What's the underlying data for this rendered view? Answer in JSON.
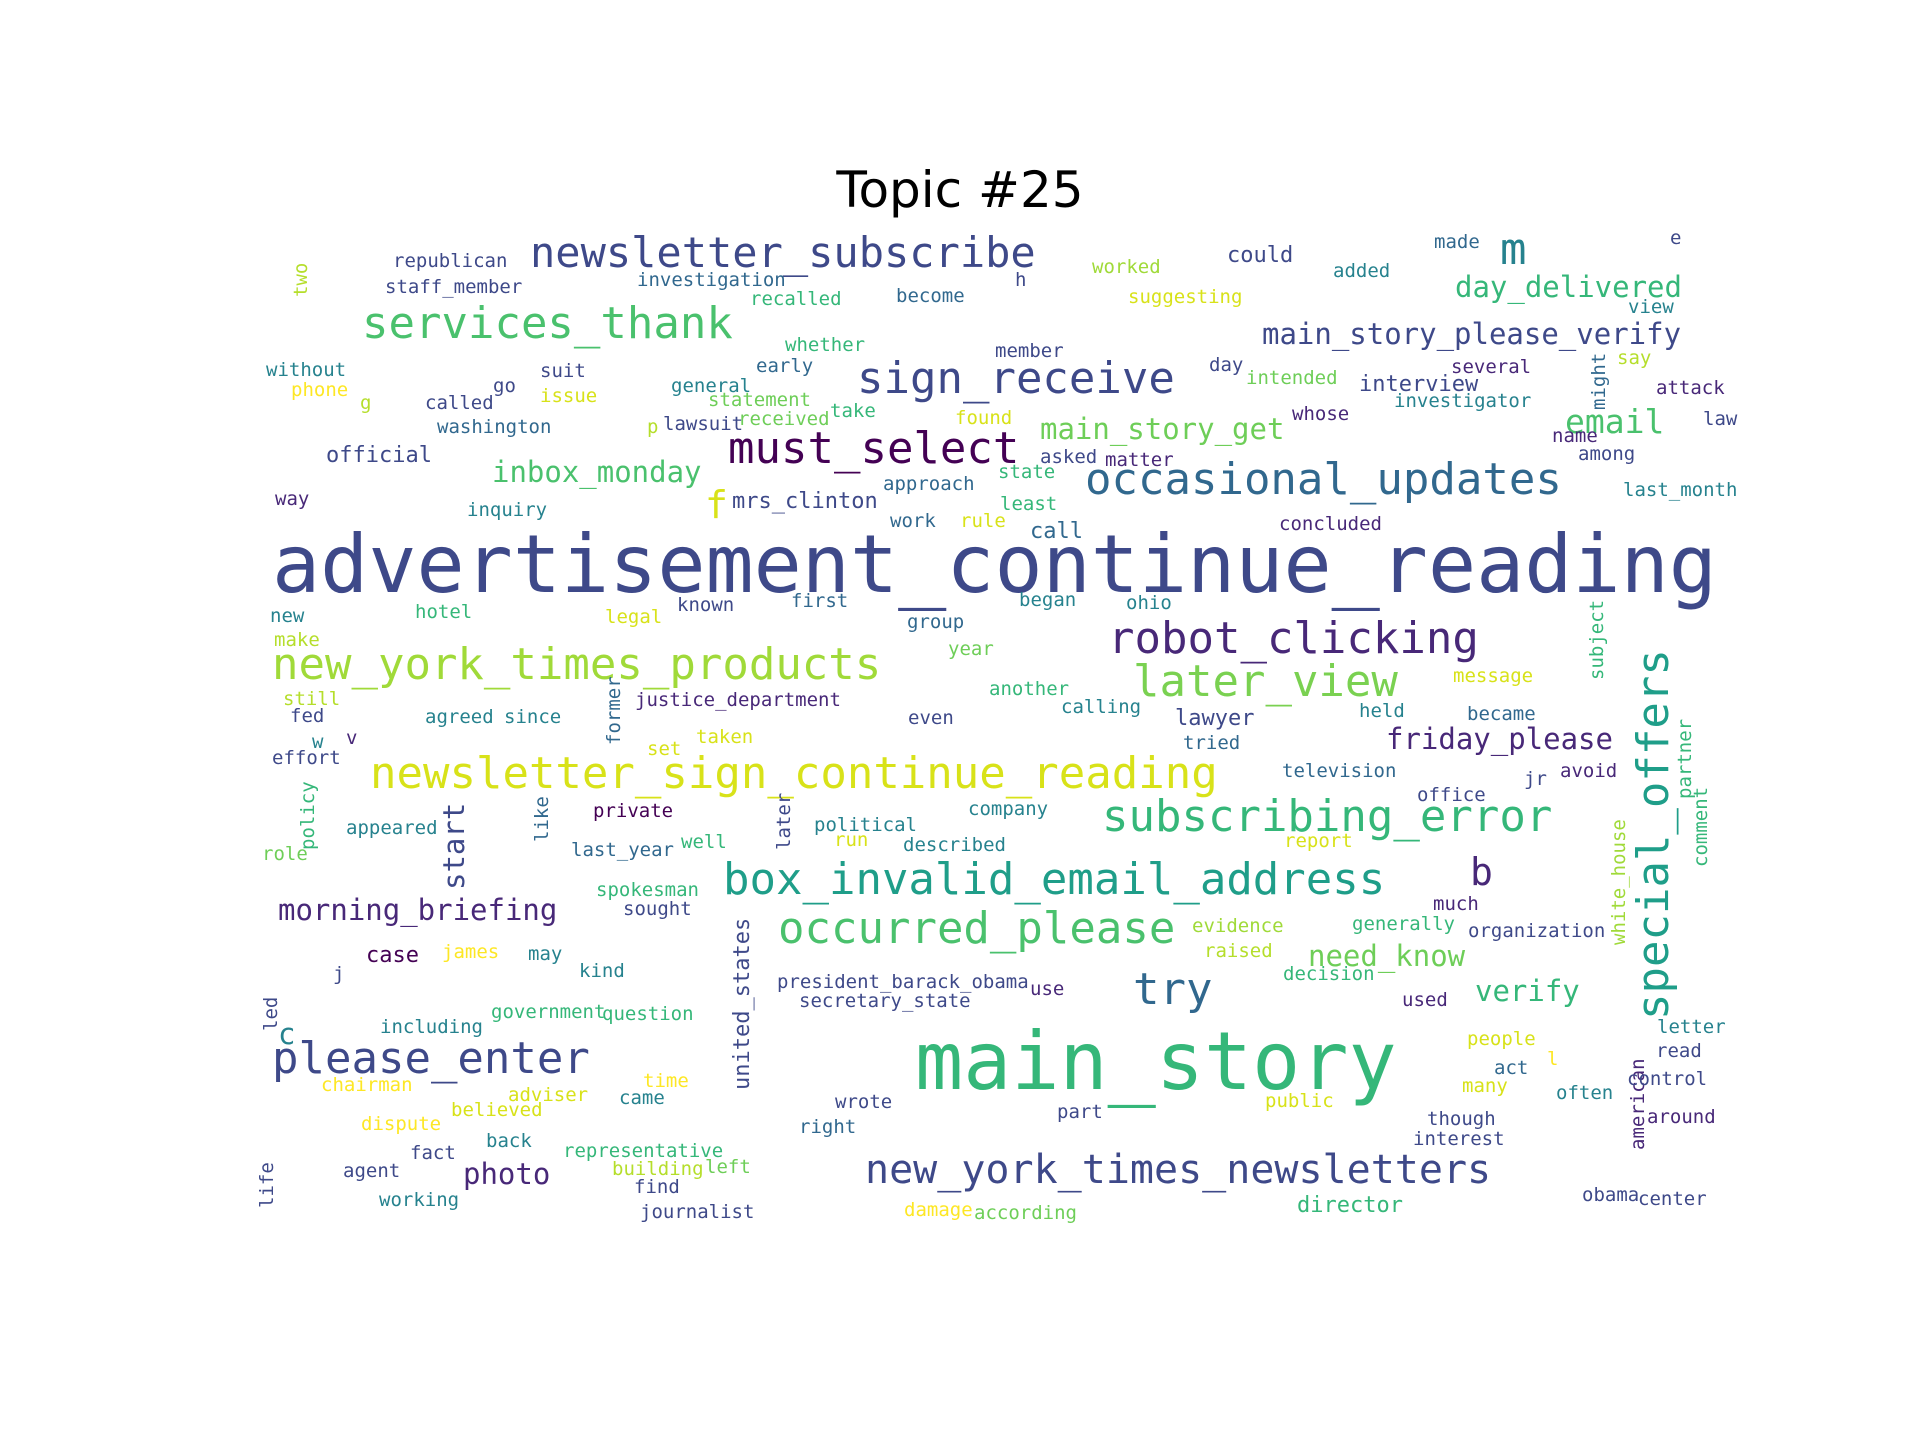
{
  "title": "Topic #25",
  "palette": [
    "#440154",
    "#482878",
    "#3e4989",
    "#31688e",
    "#26828e",
    "#1f9e89",
    "#35b779",
    "#6ece58",
    "#b5de2b",
    "#fde725"
  ],
  "words": [
    {
      "text": "advertisement_continue_reading",
      "color": "#3e4989"
    },
    {
      "text": "main_story",
      "color": "#35b779"
    },
    {
      "text": "newsletter_sign_continue_reading",
      "color": "#d8e219"
    },
    {
      "text": "new_york_times_products",
      "color": "#a0da39"
    },
    {
      "text": "box_invalid_email_address",
      "color": "#1f9e89"
    },
    {
      "text": "new_york_times_newsletters",
      "color": "#3e4989"
    },
    {
      "text": "subscribing_error",
      "color": "#35b779"
    },
    {
      "text": "occasional_updates",
      "color": "#31688e"
    },
    {
      "text": "newsletter_subscribe",
      "color": "#3e4989"
    },
    {
      "text": "robot_clicking",
      "color": "#482878"
    },
    {
      "text": "occurred_please",
      "color": "#4ac16d"
    },
    {
      "text": "please_enter",
      "color": "#3e4989"
    },
    {
      "text": "services_thank",
      "color": "#4ac16d"
    },
    {
      "text": "sign_receive",
      "color": "#3e4989"
    },
    {
      "text": "later_view",
      "color": "#7ad151"
    },
    {
      "text": "must_select",
      "color": "#440154"
    },
    {
      "text": "special_offers",
      "color": "#1f9e89"
    },
    {
      "text": "try",
      "color": "#31688e"
    },
    {
      "text": "morning_briefing",
      "color": "#482878"
    },
    {
      "text": "main_story_please_verify",
      "color": "#3e4989"
    },
    {
      "text": "inbox_monday",
      "color": "#4ac16d"
    },
    {
      "text": "main_story_get",
      "color": "#6ece58"
    },
    {
      "text": "day_delivered",
      "color": "#35b779"
    },
    {
      "text": "friday_please",
      "color": "#482878"
    },
    {
      "text": "email",
      "color": "#4ac16d"
    },
    {
      "text": "verify",
      "color": "#35b779"
    },
    {
      "text": "need_know",
      "color": "#6ece58"
    },
    {
      "text": "photo",
      "color": "#482878"
    },
    {
      "text": "m",
      "color": "#26828e"
    },
    {
      "text": "b",
      "color": "#482878"
    },
    {
      "text": "f",
      "color": "#d8e219"
    },
    {
      "text": "start",
      "color": "#3e4989"
    },
    {
      "text": "c",
      "color": "#26828e"
    },
    {
      "text": "director",
      "color": "#35b779"
    },
    {
      "text": "united_states",
      "color": "#3e4989"
    },
    {
      "text": "case",
      "color": "#440154"
    },
    {
      "text": "republican",
      "color": "#3e4989"
    },
    {
      "text": "staff_member",
      "color": "#3e4989"
    },
    {
      "text": "investigation",
      "color": "#31688e"
    },
    {
      "text": "recalled",
      "color": "#35b779"
    },
    {
      "text": "become",
      "color": "#31688e"
    },
    {
      "text": "worked",
      "color": "#a0da39"
    },
    {
      "text": "suggesting",
      "color": "#d8e219"
    },
    {
      "text": "could",
      "color": "#3e4989"
    },
    {
      "text": "added",
      "color": "#26828e"
    },
    {
      "text": "made",
      "color": "#31688e"
    },
    {
      "text": "e",
      "color": "#3e4989"
    },
    {
      "text": "view",
      "color": "#26828e"
    },
    {
      "text": "h",
      "color": "#3e4989"
    },
    {
      "text": "two",
      "color": "#b5de2b"
    },
    {
      "text": "whether",
      "color": "#35b779"
    },
    {
      "text": "member",
      "color": "#3e4989"
    },
    {
      "text": "early",
      "color": "#31688e"
    },
    {
      "text": "general",
      "color": "#26828e"
    },
    {
      "text": "statement",
      "color": "#6ece58"
    },
    {
      "text": "take",
      "color": "#35b779"
    },
    {
      "text": "found",
      "color": "#d8e219"
    },
    {
      "text": "lawsuit",
      "color": "#3e4989"
    },
    {
      "text": "received",
      "color": "#6ece58"
    },
    {
      "text": "p",
      "color": "#b5de2b"
    },
    {
      "text": "without",
      "color": "#26828e"
    },
    {
      "text": "phone",
      "color": "#fde725"
    },
    {
      "text": "g",
      "color": "#b5de2b"
    },
    {
      "text": "called",
      "color": "#3e4989"
    },
    {
      "text": "go",
      "color": "#3e4989"
    },
    {
      "text": "suit",
      "color": "#3e4989"
    },
    {
      "text": "issue",
      "color": "#d8e219"
    },
    {
      "text": "washington",
      "color": "#31688e"
    },
    {
      "text": "official",
      "color": "#3e4989"
    },
    {
      "text": "way",
      "color": "#482878"
    },
    {
      "text": "inquiry",
      "color": "#26828e"
    },
    {
      "text": "mrs_clinton",
      "color": "#3e4989"
    },
    {
      "text": "approach",
      "color": "#31688e"
    },
    {
      "text": "state",
      "color": "#35b779"
    },
    {
      "text": "asked",
      "color": "#3e4989"
    },
    {
      "text": "matter",
      "color": "#482878"
    },
    {
      "text": "least",
      "color": "#35b779"
    },
    {
      "text": "work",
      "color": "#31688e"
    },
    {
      "text": "rule",
      "color": "#d8e219"
    },
    {
      "text": "call",
      "color": "#31688e"
    },
    {
      "text": "concluded",
      "color": "#482878"
    },
    {
      "text": "day",
      "color": "#3e4989"
    },
    {
      "text": "intended",
      "color": "#6ece58"
    },
    {
      "text": "interview",
      "color": "#3e4989"
    },
    {
      "text": "investigator",
      "color": "#26828e"
    },
    {
      "text": "several",
      "color": "#482878"
    },
    {
      "text": "say",
      "color": "#b5de2b"
    },
    {
      "text": "might",
      "color": "#31688e"
    },
    {
      "text": "attack",
      "color": "#482878"
    },
    {
      "text": "whose",
      "color": "#482878"
    },
    {
      "text": "name",
      "color": "#482878"
    },
    {
      "text": "law",
      "color": "#3e4989"
    },
    {
      "text": "among",
      "color": "#3e4989"
    },
    {
      "text": "last_month",
      "color": "#26828e"
    },
    {
      "text": "new",
      "color": "#26828e"
    },
    {
      "text": "hotel",
      "color": "#35b779"
    },
    {
      "text": "legal",
      "color": "#d8e219"
    },
    {
      "text": "known",
      "color": "#3e4989"
    },
    {
      "text": "first",
      "color": "#31688e"
    },
    {
      "text": "group",
      "color": "#31688e"
    },
    {
      "text": "began",
      "color": "#26828e"
    },
    {
      "text": "ohio",
      "color": "#26828e"
    },
    {
      "text": "subject",
      "color": "#35b779"
    },
    {
      "text": "make",
      "color": "#b5de2b"
    },
    {
      "text": "year",
      "color": "#6ece58"
    },
    {
      "text": "still",
      "color": "#b5de2b"
    },
    {
      "text": "fed",
      "color": "#3e4989"
    },
    {
      "text": "agreed",
      "color": "#26828e"
    },
    {
      "text": "since",
      "color": "#26828e"
    },
    {
      "text": "former",
      "color": "#31688e"
    },
    {
      "text": "justice_department",
      "color": "#482878"
    },
    {
      "text": "another",
      "color": "#35b779"
    },
    {
      "text": "calling",
      "color": "#26828e"
    },
    {
      "text": "message",
      "color": "#d8e219"
    },
    {
      "text": "held",
      "color": "#26828e"
    },
    {
      "text": "became",
      "color": "#31688e"
    },
    {
      "text": "even",
      "color": "#3e4989"
    },
    {
      "text": "lawyer",
      "color": "#3e4989"
    },
    {
      "text": "tried",
      "color": "#31688e"
    },
    {
      "text": "effort",
      "color": "#3e4989"
    },
    {
      "text": "w",
      "color": "#26828e"
    },
    {
      "text": "v",
      "color": "#482878"
    },
    {
      "text": "set",
      "color": "#d8e219"
    },
    {
      "text": "taken",
      "color": "#d8e219"
    },
    {
      "text": "television",
      "color": "#31688e"
    },
    {
      "text": "jr",
      "color": "#3e4989"
    },
    {
      "text": "avoid",
      "color": "#482878"
    },
    {
      "text": "partner",
      "color": "#35b779"
    },
    {
      "text": "office",
      "color": "#3e4989"
    },
    {
      "text": "policy",
      "color": "#35b779"
    },
    {
      "text": "like",
      "color": "#31688e"
    },
    {
      "text": "private",
      "color": "#440154"
    },
    {
      "text": "later",
      "color": "#3e4989"
    },
    {
      "text": "company",
      "color": "#26828e"
    },
    {
      "text": "comment",
      "color": "#35b779"
    },
    {
      "text": "role",
      "color": "#6ece58"
    },
    {
      "text": "appeared",
      "color": "#26828e"
    },
    {
      "text": "last_year",
      "color": "#31688e"
    },
    {
      "text": "well",
      "color": "#35b779"
    },
    {
      "text": "political",
      "color": "#26828e"
    },
    {
      "text": "run",
      "color": "#d8e219"
    },
    {
      "text": "described",
      "color": "#26828e"
    },
    {
      "text": "report",
      "color": "#d8e219"
    },
    {
      "text": "white_house",
      "color": "#a0da39"
    },
    {
      "text": "spokesman",
      "color": "#35b779"
    },
    {
      "text": "sought",
      "color": "#3e4989"
    },
    {
      "text": "much",
      "color": "#482878"
    },
    {
      "text": "evidence",
      "color": "#a0da39"
    },
    {
      "text": "generally",
      "color": "#35b779"
    },
    {
      "text": "organization",
      "color": "#3e4989"
    },
    {
      "text": "james",
      "color": "#fde725"
    },
    {
      "text": "may",
      "color": "#26828e"
    },
    {
      "text": "raised",
      "color": "#b5de2b"
    },
    {
      "text": "j",
      "color": "#3e4989"
    },
    {
      "text": "kind",
      "color": "#26828e"
    },
    {
      "text": "decision",
      "color": "#35b779"
    },
    {
      "text": "president_barack_obama",
      "color": "#3e4989"
    },
    {
      "text": "use",
      "color": "#482878"
    },
    {
      "text": "secretary_state",
      "color": "#3e4989"
    },
    {
      "text": "used",
      "color": "#482878"
    },
    {
      "text": "led",
      "color": "#3e4989"
    },
    {
      "text": "government",
      "color": "#35b779"
    },
    {
      "text": "question",
      "color": "#35b779"
    },
    {
      "text": "including",
      "color": "#26828e"
    },
    {
      "text": "letter",
      "color": "#26828e"
    },
    {
      "text": "people",
      "color": "#d8e219"
    },
    {
      "text": "read",
      "color": "#3e4989"
    },
    {
      "text": "american",
      "color": "#482878"
    },
    {
      "text": "l",
      "color": "#fde725"
    },
    {
      "text": "act",
      "color": "#31688e"
    },
    {
      "text": "control",
      "color": "#3e4989"
    },
    {
      "text": "time",
      "color": "#fde725"
    },
    {
      "text": "chairman",
      "color": "#fde725"
    },
    {
      "text": "adviser",
      "color": "#d8e219"
    },
    {
      "text": "came",
      "color": "#26828e"
    },
    {
      "text": "wrote",
      "color": "#3e4989"
    },
    {
      "text": "many",
      "color": "#d8e219"
    },
    {
      "text": "often",
      "color": "#26828e"
    },
    {
      "text": "public",
      "color": "#d8e219"
    },
    {
      "text": "believed",
      "color": "#d8e219"
    },
    {
      "text": "part",
      "color": "#3e4989"
    },
    {
      "text": "though",
      "color": "#3e4989"
    },
    {
      "text": "around",
      "color": "#482878"
    },
    {
      "text": "dispute",
      "color": "#fde725"
    },
    {
      "text": "right",
      "color": "#31688e"
    },
    {
      "text": "interest",
      "color": "#3e4989"
    },
    {
      "text": "fact",
      "color": "#3e4989"
    },
    {
      "text": "back",
      "color": "#26828e"
    },
    {
      "text": "representative",
      "color": "#35b779"
    },
    {
      "text": "building",
      "color": "#b5de2b"
    },
    {
      "text": "left",
      "color": "#6ece58"
    },
    {
      "text": "life",
      "color": "#3e4989"
    },
    {
      "text": "agent",
      "color": "#3e4989"
    },
    {
      "text": "find",
      "color": "#3e4989"
    },
    {
      "text": "working",
      "color": "#26828e"
    },
    {
      "text": "journalist",
      "color": "#3e4989"
    },
    {
      "text": "damage",
      "color": "#fde725"
    },
    {
      "text": "according",
      "color": "#6ece58"
    },
    {
      "text": "obama",
      "color": "#3e4989"
    },
    {
      "text": "center",
      "color": "#3e4989"
    }
  ]
}
